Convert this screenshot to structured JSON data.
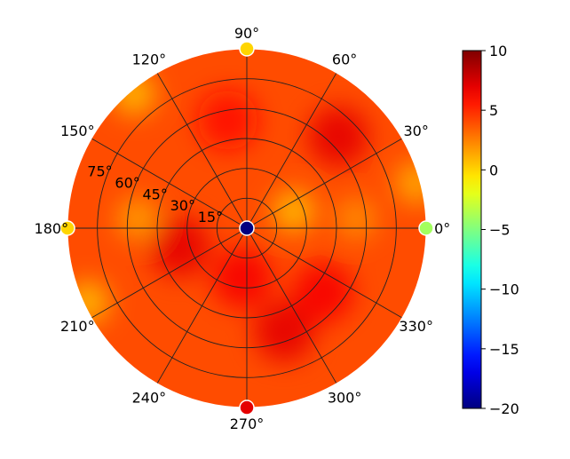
{
  "chart_data": {
    "type": "heatmap",
    "projection": "polar",
    "title": "",
    "angular_ticks": [
      "0°",
      "30°",
      "60°",
      "90°",
      "120°",
      "150°",
      "180°",
      "210°",
      "240°",
      "270°",
      "300°",
      "330°"
    ],
    "angular_tick_values": [
      0,
      30,
      60,
      90,
      120,
      150,
      180,
      210,
      240,
      270,
      300,
      330
    ],
    "radial_ticks": [
      "15°",
      "30°",
      "45°",
      "60°",
      "75°"
    ],
    "radial_tick_values": [
      15,
      30,
      45,
      60,
      75
    ],
    "radial_range": [
      0,
      90
    ],
    "grid": true,
    "colormap": "jet",
    "colorbar": {
      "range": [
        -20,
        10
      ],
      "ticks": [
        "10",
        "5",
        "0",
        "−5",
        "−10",
        "−15",
        "−20"
      ],
      "tick_values": [
        10,
        5,
        0,
        -5,
        -10,
        -15,
        -20
      ],
      "placement": "right"
    },
    "background_value": 4,
    "hotspots": [
      {
        "theta": 45,
        "r": 65,
        "value": 7
      },
      {
        "theta": 195,
        "r": 35,
        "value": 7
      },
      {
        "theta": 290,
        "r": 55,
        "value": 7
      },
      {
        "theta": 320,
        "r": 50,
        "value": 6.5
      },
      {
        "theta": 265,
        "r": 25,
        "value": 6.5
      },
      {
        "theta": 100,
        "r": 55,
        "value": 6
      }
    ],
    "coolspots": [
      {
        "theta": 20,
        "r": 25,
        "value": 0.5
      },
      {
        "theta": 5,
        "r": 55,
        "value": 2
      },
      {
        "theta": 175,
        "r": 55,
        "value": 1.5
      },
      {
        "theta": 130,
        "r": 88,
        "value": 0.5
      },
      {
        "theta": 205,
        "r": 88,
        "value": 0.5
      },
      {
        "theta": 15,
        "r": 88,
        "value": 1
      }
    ],
    "markers": [
      {
        "theta": 0,
        "r": 0,
        "value": -20
      },
      {
        "theta": 0,
        "r": 90,
        "value": -4
      },
      {
        "theta": 90,
        "r": 90,
        "value": 0
      },
      {
        "theta": 180,
        "r": 90,
        "value": 0
      },
      {
        "theta": 270,
        "r": 90,
        "value": 7
      }
    ]
  }
}
